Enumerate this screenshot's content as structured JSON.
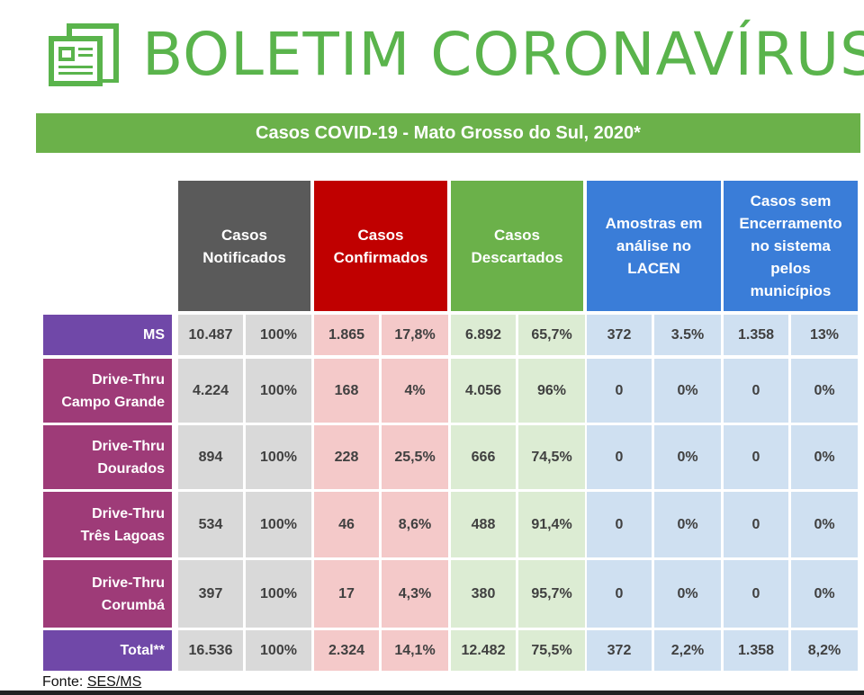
{
  "header": {
    "title": "BOLETIM CORONAVÍRUS",
    "logo_icon": "newspaper-icon"
  },
  "banner": {
    "text": "Casos COVID-19 - Mato Grosso do Sul, 2020*"
  },
  "columns": [
    {
      "label": "Casos\nNotificados",
      "color": "#5a5a5a"
    },
    {
      "label": "Casos\nConfirmados",
      "color": "#c00000"
    },
    {
      "label": "Casos\nDescartados",
      "color": "#6bb14a"
    },
    {
      "label": "Amostras em\nanálise no\nLACEN",
      "color": "#3a7dd8"
    },
    {
      "label": "Casos sem\nEncerramento\nno sistema\npelos\nmunicípios",
      "color": "#3a7dd8"
    }
  ],
  "rows": [
    {
      "label": "MS",
      "values": [
        "10.487",
        "100%",
        "1.865",
        "17,8%",
        "6.892",
        "65,7%",
        "372",
        "3.5%",
        "1.358",
        "13%"
      ]
    },
    {
      "label": "Drive-Thru\nCampo Grande",
      "values": [
        "4.224",
        "100%",
        "168",
        "4%",
        "4.056",
        "96%",
        "0",
        "0%",
        "0",
        "0%"
      ]
    },
    {
      "label": "Drive-Thru\nDourados",
      "values": [
        "894",
        "100%",
        "228",
        "25,5%",
        "666",
        "74,5%",
        "0",
        "0%",
        "0",
        "0%"
      ]
    },
    {
      "label": "Drive-Thru\nTrês Lagoas",
      "values": [
        "534",
        "100%",
        "46",
        "8,6%",
        "488",
        "91,4%",
        "0",
        "0%",
        "0",
        "0%"
      ]
    },
    {
      "label": "Drive-Thru\nCorumbá",
      "values": [
        "397",
        "100%",
        "17",
        "4,3%",
        "380",
        "95,7%",
        "0",
        "0%",
        "0",
        "0%"
      ]
    },
    {
      "label": "Total**",
      "values": [
        "16.536",
        "100%",
        "2.324",
        "14,1%",
        "12.482",
        "75,5%",
        "372",
        "2,2%",
        "1.358",
        "8,2%"
      ]
    }
  ],
  "colors": {
    "row_label_ms": "#7048a8",
    "row_label_drive": "#9e3b78",
    "row_label_total": "#7048a8",
    "cell_gray": "#d9d9d9",
    "cell_pink": "#f4c9c9",
    "cell_green": "#dcecd3",
    "cell_blue": "#cfe0f1"
  },
  "footer": {
    "prefix": "Fonte: ",
    "source": "SES/MS"
  }
}
